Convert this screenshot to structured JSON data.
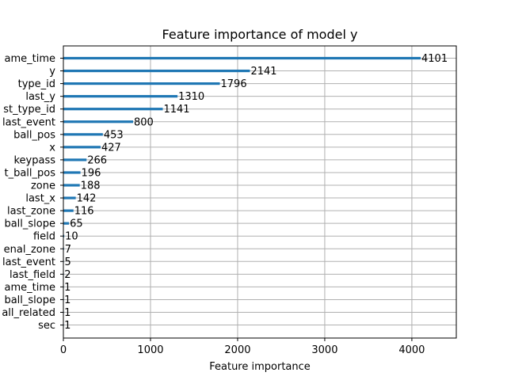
{
  "chart_data": {
    "type": "bar",
    "orientation": "horizontal",
    "title": "Feature importance of model y",
    "xlabel": "Feature importance",
    "ylabel": "",
    "xlim": [
      0,
      4510
    ],
    "x_ticks": [
      0,
      1000,
      2000,
      3000,
      4000
    ],
    "grid": true,
    "categories": [
      "game_time",
      "y",
      "type_id",
      "last_y",
      "last_type_id",
      "last_event",
      "ball_pos",
      "x",
      "keypass",
      "last_ball_pos",
      "zone",
      "last_x",
      "last_zone",
      "ball_slope",
      "field",
      "penal_zone",
      "last_event",
      "last_field",
      "game_time",
      "ball_slope",
      "ball_related",
      "sec"
    ],
    "category_labels_shown": [
      "ame_time",
      "y",
      "type_id",
      "last_y",
      "st_type_id",
      "last_event",
      "ball_pos",
      "x",
      "keypass",
      "t_ball_pos",
      "zone",
      "last_x",
      "last_zone",
      "ball_slope",
      "field",
      "enal_zone",
      "last_event",
      "last_field",
      "ame_time",
      "ball_slope",
      "all_related",
      "sec"
    ],
    "values": [
      4101,
      2141,
      1796,
      1310,
      1141,
      800,
      453,
      427,
      266,
      196,
      188,
      142,
      116,
      65,
      10,
      7,
      5,
      2,
      1,
      1,
      1,
      1
    ],
    "value_labels": [
      "4101",
      "2141",
      "1796",
      "1310",
      "1141",
      "800",
      "453",
      "427",
      "266",
      "196",
      "188",
      "142",
      "116",
      "65",
      "10",
      "7",
      "5",
      "2",
      "1",
      "1",
      "1",
      "1"
    ],
    "bar_color": "#1f77b4",
    "grid_color": "#b0b0b0"
  }
}
